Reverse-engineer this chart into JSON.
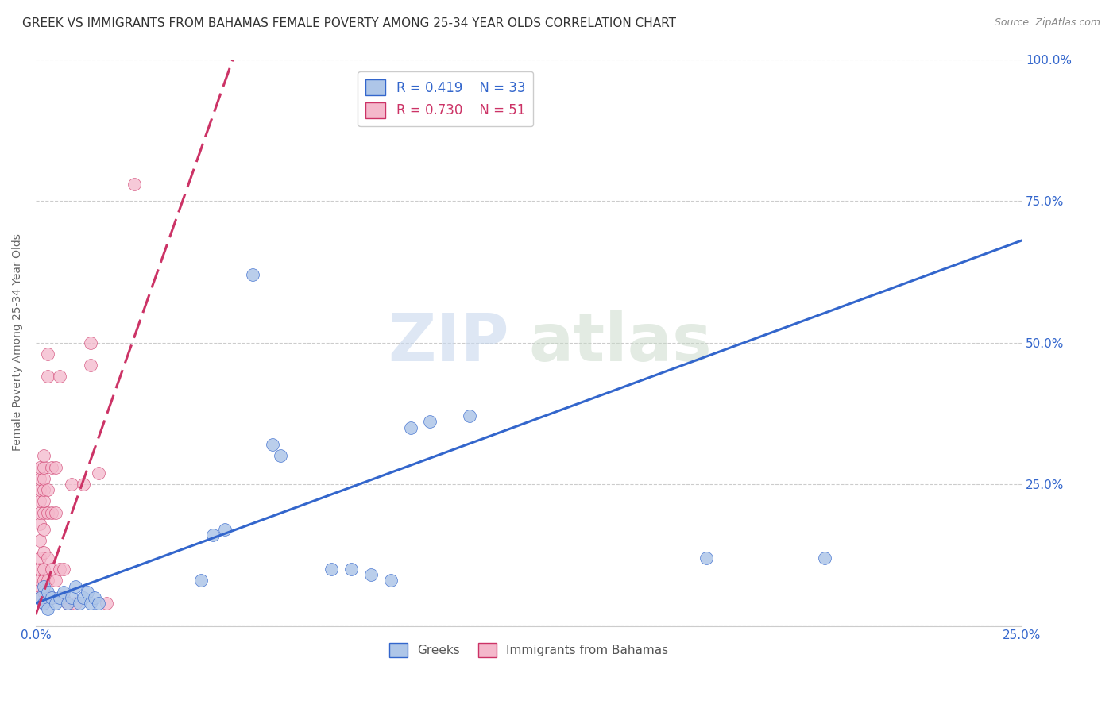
{
  "title": "GREEK VS IMMIGRANTS FROM BAHAMAS FEMALE POVERTY AMONG 25-34 YEAR OLDS CORRELATION CHART",
  "source": "Source: ZipAtlas.com",
  "ylabel": "Female Poverty Among 25-34 Year Olds",
  "watermark_zip": "ZIP",
  "watermark_atlas": "atlas",
  "blue_R": 0.419,
  "blue_N": 33,
  "pink_R": 0.73,
  "pink_N": 51,
  "blue_label": "Greeks",
  "pink_label": "Immigrants from Bahamas",
  "blue_color": "#aec6e8",
  "pink_color": "#f4b8cb",
  "blue_line_color": "#3366cc",
  "pink_line_color": "#cc3366",
  "blue_scatter": [
    [
      0.001,
      0.05
    ],
    [
      0.002,
      0.07
    ],
    [
      0.002,
      0.04
    ],
    [
      0.003,
      0.06
    ],
    [
      0.003,
      0.03
    ],
    [
      0.004,
      0.05
    ],
    [
      0.005,
      0.04
    ],
    [
      0.006,
      0.05
    ],
    [
      0.007,
      0.06
    ],
    [
      0.008,
      0.04
    ],
    [
      0.009,
      0.05
    ],
    [
      0.01,
      0.07
    ],
    [
      0.011,
      0.04
    ],
    [
      0.012,
      0.05
    ],
    [
      0.013,
      0.06
    ],
    [
      0.014,
      0.04
    ],
    [
      0.015,
      0.05
    ],
    [
      0.016,
      0.04
    ],
    [
      0.042,
      0.08
    ],
    [
      0.045,
      0.16
    ],
    [
      0.048,
      0.17
    ],
    [
      0.055,
      0.62
    ],
    [
      0.06,
      0.32
    ],
    [
      0.062,
      0.3
    ],
    [
      0.075,
      0.1
    ],
    [
      0.08,
      0.1
    ],
    [
      0.085,
      0.09
    ],
    [
      0.09,
      0.08
    ],
    [
      0.095,
      0.35
    ],
    [
      0.1,
      0.36
    ],
    [
      0.11,
      0.37
    ],
    [
      0.17,
      0.12
    ],
    [
      0.2,
      0.12
    ]
  ],
  "pink_scatter": [
    [
      0.001,
      0.05
    ],
    [
      0.001,
      0.07
    ],
    [
      0.001,
      0.08
    ],
    [
      0.001,
      0.1
    ],
    [
      0.001,
      0.12
    ],
    [
      0.001,
      0.15
    ],
    [
      0.001,
      0.18
    ],
    [
      0.001,
      0.2
    ],
    [
      0.001,
      0.22
    ],
    [
      0.001,
      0.24
    ],
    [
      0.001,
      0.26
    ],
    [
      0.001,
      0.28
    ],
    [
      0.002,
      0.04
    ],
    [
      0.002,
      0.06
    ],
    [
      0.002,
      0.08
    ],
    [
      0.002,
      0.1
    ],
    [
      0.002,
      0.13
    ],
    [
      0.002,
      0.17
    ],
    [
      0.002,
      0.2
    ],
    [
      0.002,
      0.22
    ],
    [
      0.002,
      0.24
    ],
    [
      0.002,
      0.26
    ],
    [
      0.002,
      0.28
    ],
    [
      0.002,
      0.3
    ],
    [
      0.003,
      0.05
    ],
    [
      0.003,
      0.08
    ],
    [
      0.003,
      0.12
    ],
    [
      0.003,
      0.2
    ],
    [
      0.003,
      0.24
    ],
    [
      0.003,
      0.44
    ],
    [
      0.003,
      0.48
    ],
    [
      0.004,
      0.05
    ],
    [
      0.004,
      0.1
    ],
    [
      0.004,
      0.2
    ],
    [
      0.004,
      0.28
    ],
    [
      0.005,
      0.08
    ],
    [
      0.005,
      0.2
    ],
    [
      0.005,
      0.28
    ],
    [
      0.006,
      0.1
    ],
    [
      0.006,
      0.44
    ],
    [
      0.007,
      0.05
    ],
    [
      0.007,
      0.1
    ],
    [
      0.008,
      0.04
    ],
    [
      0.009,
      0.25
    ],
    [
      0.01,
      0.04
    ],
    [
      0.012,
      0.25
    ],
    [
      0.014,
      0.46
    ],
    [
      0.014,
      0.5
    ],
    [
      0.016,
      0.27
    ],
    [
      0.018,
      0.04
    ],
    [
      0.025,
      0.78
    ]
  ],
  "xlim": [
    0,
    0.25
  ],
  "ylim": [
    0,
    1.0
  ],
  "xticks": [
    0,
    0.05,
    0.1,
    0.15,
    0.2,
    0.25
  ],
  "xticklabels": [
    "0.0%",
    "",
    "",
    "",
    "",
    "25.0%"
  ],
  "yticks": [
    0.0,
    0.25,
    0.5,
    0.75,
    1.0
  ],
  "yticklabels_right": [
    "",
    "25.0%",
    "50.0%",
    "75.0%",
    "100.0%"
  ],
  "grid_color": "#cccccc",
  "background_color": "#ffffff",
  "title_fontsize": 11,
  "blue_trend_x": [
    0.0,
    0.25
  ],
  "blue_trend_y": [
    0.04,
    0.68
  ],
  "pink_trend_x": [
    0.0,
    0.05
  ],
  "pink_trend_y": [
    0.02,
    1.0
  ]
}
